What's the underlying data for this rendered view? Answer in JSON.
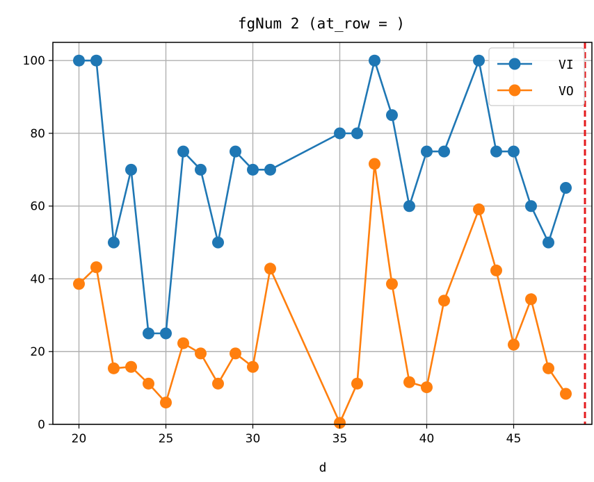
{
  "chart_data": {
    "type": "line",
    "title": "fgNum 2 (at_row = )",
    "xlabel": "d",
    "ylabel": "",
    "xlim": [
      18.5,
      49.5
    ],
    "ylim": [
      0,
      105
    ],
    "xticks": [
      20,
      25,
      30,
      35,
      40,
      45
    ],
    "yticks": [
      0,
      20,
      40,
      60,
      80,
      100
    ],
    "grid": true,
    "legend_position": "top-right",
    "vline": {
      "x": 49.1,
      "color": "#e41a1c",
      "style": "dashed"
    },
    "series": [
      {
        "name": "VI",
        "color": "#1f77b4",
        "points": [
          [
            20,
            100
          ],
          [
            21,
            100
          ],
          [
            22,
            50
          ],
          [
            23,
            70
          ],
          [
            24,
            25
          ],
          [
            25,
            25
          ],
          [
            26,
            75
          ],
          [
            27,
            70
          ],
          [
            28,
            50
          ],
          [
            29,
            75
          ],
          [
            30,
            70
          ],
          [
            31,
            70
          ],
          [
            35,
            80
          ],
          [
            36,
            80
          ],
          [
            37,
            100
          ],
          [
            38,
            85
          ],
          [
            39,
            60
          ],
          [
            40,
            75
          ],
          [
            41,
            75
          ],
          [
            43,
            100
          ],
          [
            44,
            75
          ],
          [
            45,
            75
          ],
          [
            46,
            60
          ],
          [
            47,
            50
          ],
          [
            48,
            65
          ]
        ]
      },
      {
        "name": "VO",
        "color": "#ff7f0e",
        "points": [
          [
            20,
            38.6
          ],
          [
            21,
            43.2
          ],
          [
            22,
            15.4
          ],
          [
            23,
            15.8
          ],
          [
            24,
            11.2
          ],
          [
            25,
            6.0
          ],
          [
            26,
            22.3
          ],
          [
            27,
            19.5
          ],
          [
            28,
            11.2
          ],
          [
            29,
            19.5
          ],
          [
            30,
            15.8
          ],
          [
            31,
            42.8
          ],
          [
            35,
            0.4
          ],
          [
            36,
            11.2
          ],
          [
            37,
            71.6
          ],
          [
            38,
            38.6
          ],
          [
            39,
            11.6
          ],
          [
            40,
            10.2
          ],
          [
            41,
            34.0
          ],
          [
            43,
            59.1
          ],
          [
            44,
            42.3
          ],
          [
            45,
            21.9
          ],
          [
            46,
            34.4
          ],
          [
            47,
            15.4
          ],
          [
            48,
            8.4
          ]
        ]
      }
    ]
  }
}
